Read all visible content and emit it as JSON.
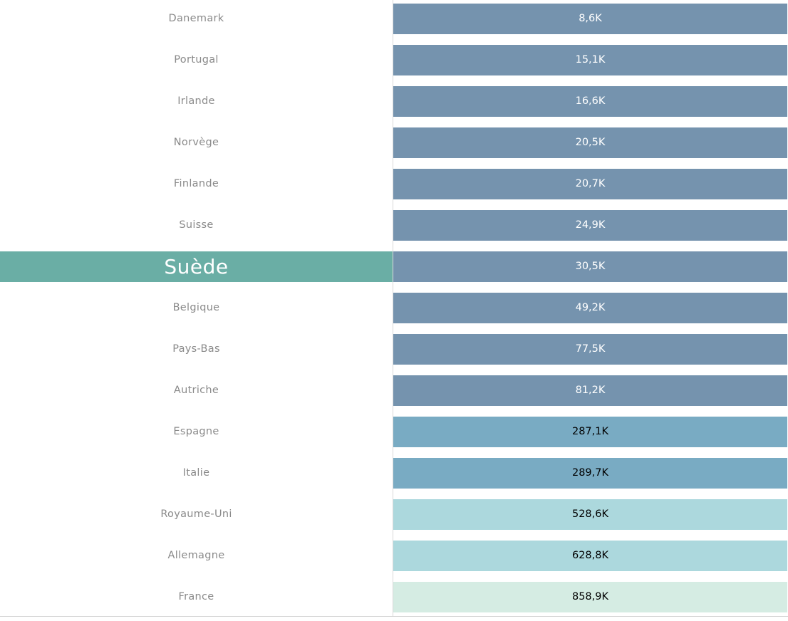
{
  "chart_data": {
    "type": "table",
    "highlighted_country": "Suède",
    "rows": [
      {
        "country": "Danemark",
        "value": 8.6,
        "label": "8,6K",
        "color": "#7593ae",
        "text_color": "#ffffff"
      },
      {
        "country": "Portugal",
        "value": 15.1,
        "label": "15,1K",
        "color": "#7593ae",
        "text_color": "#ffffff"
      },
      {
        "country": "Irlande",
        "value": 16.6,
        "label": "16,6K",
        "color": "#7593ae",
        "text_color": "#ffffff"
      },
      {
        "country": "Norvège",
        "value": 20.5,
        "label": "20,5K",
        "color": "#7593ae",
        "text_color": "#ffffff"
      },
      {
        "country": "Finlande",
        "value": 20.7,
        "label": "20,7K",
        "color": "#7593ae",
        "text_color": "#ffffff"
      },
      {
        "country": "Suisse",
        "value": 24.9,
        "label": "24,9K",
        "color": "#7593ae",
        "text_color": "#ffffff"
      },
      {
        "country": "Suède",
        "value": 30.5,
        "label": "30,5K",
        "color": "#7593ae",
        "text_color": "#ffffff"
      },
      {
        "country": "Belgique",
        "value": 49.2,
        "label": "49,2K",
        "color": "#7593ae",
        "text_color": "#ffffff"
      },
      {
        "country": "Pays-Bas",
        "value": 77.5,
        "label": "77,5K",
        "color": "#7593ae",
        "text_color": "#ffffff"
      },
      {
        "country": "Autriche",
        "value": 81.2,
        "label": "81,2K",
        "color": "#7593ae",
        "text_color": "#ffffff"
      },
      {
        "country": "Espagne",
        "value": 287.1,
        "label": "287,1K",
        "color": "#79abc3",
        "text_color": "#000000"
      },
      {
        "country": "Italie",
        "value": 289.7,
        "label": "289,7K",
        "color": "#79abc3",
        "text_color": "#000000"
      },
      {
        "country": "Royaume-Uni",
        "value": 528.6,
        "label": "528,6K",
        "color": "#acd8dd",
        "text_color": "#000000"
      },
      {
        "country": "Allemagne",
        "value": 628.8,
        "label": "628,8K",
        "color": "#acd8dd",
        "text_color": "#000000"
      },
      {
        "country": "France",
        "value": 858.9,
        "label": "858,9K",
        "color": "#d5ece3",
        "text_color": "#000000"
      }
    ]
  }
}
